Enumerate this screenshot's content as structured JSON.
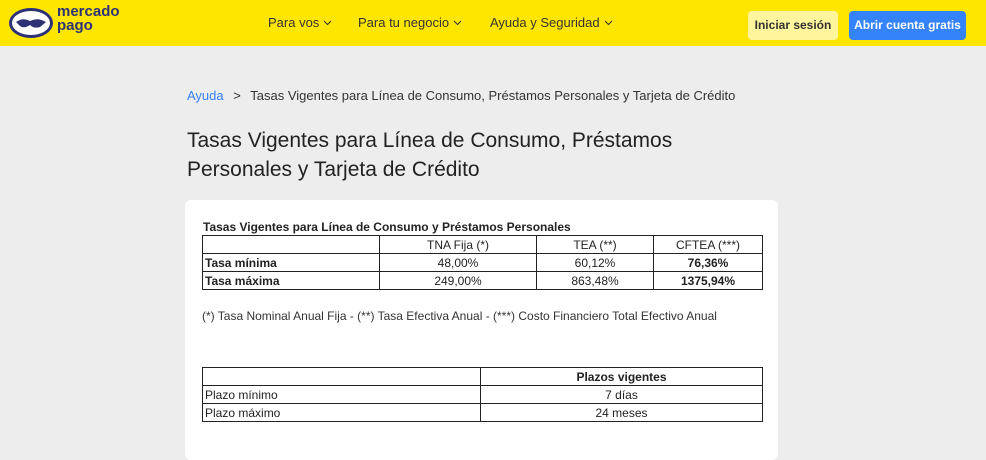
{
  "header": {
    "logo": [
      "mercado",
      "pago"
    ],
    "nav": [
      "Para vos",
      "Para tu negocio",
      "Ayuda y Seguridad"
    ],
    "login": "Iniciar sesión",
    "signup": "Abrir cuenta gratis"
  },
  "breadcrumb": {
    "link": "Ayuda",
    "separator": ">",
    "current": "Tasas Vigentes para Línea de Consumo, Préstamos Personales y Tarjeta de Crédito"
  },
  "title": [
    "Tasas Vigentes para Línea de Consumo, Préstamos",
    "Personales y Tarjeta de Crédito"
  ],
  "table1": {
    "caption": "Tasas Vigentes para Línea de Consumo y Préstamos Personales",
    "header": [
      "TNA Fija (*)",
      "TEA (**)",
      "CFTEA (***)"
    ],
    "rows": [
      [
        "Tasa mínima",
        "48,00%",
        "60,12%",
        "76,36%"
      ],
      [
        "Tasa máxima",
        "249,00%",
        "863,48%",
        "1375,94%"
      ]
    ]
  },
  "footnote": "(*) Tasa Nominal Anual Fija - (**) Tasa Efectiva Anual - (***) Costo Financiero Total Efectivo Anual",
  "table2": {
    "header": [
      "Plazos vigentes"
    ],
    "rows": [
      [
        "Plazo mínimo",
        "7 días"
      ],
      [
        "Plazo máximo",
        "24 meses"
      ]
    ]
  }
}
